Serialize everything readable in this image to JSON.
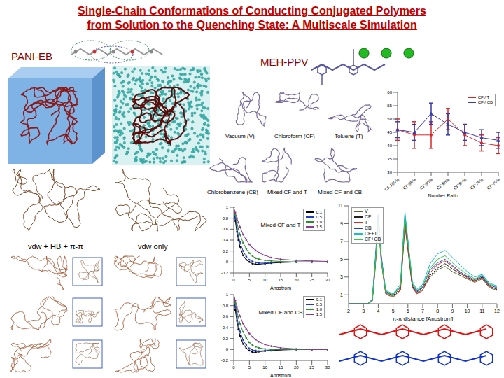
{
  "title": "Single-Chain Conformations of Conducting Conjugated Polymers from Solution to the Quenching State: A Multiscale Simulation",
  "labels": {
    "pani": "PANI-EB",
    "meh": "MEH-PPV",
    "hb": "vdw + HB + π-π",
    "vdw": "vdw only"
  },
  "solvents": [
    "Vacuum (V)",
    "Chloroform (CF)",
    "Toluene (T)",
    "Chlorobenzene (CB)",
    "Mixed CF and T",
    "Mixed CF and CB"
  ],
  "chart_data": [
    {
      "type": "line",
      "x_label": "Number Ratio",
      "categories": [
        "CF:100%",
        "CF:95%",
        "CF:90%",
        "CF:85%",
        "CF:80%",
        "CF:75%",
        "CF:70%"
      ],
      "series": [
        {
          "name": "CF / T",
          "color": "#d62728",
          "marker": "circle",
          "values": [
            46,
            44,
            44,
            50,
            44,
            41,
            40
          ],
          "errors": [
            4,
            5,
            5,
            4,
            4,
            3,
            3
          ]
        },
        {
          "name": "CF / CB",
          "color": "#3a3aa8",
          "marker": "triangle",
          "values": [
            46,
            45,
            52,
            48,
            45,
            43,
            42
          ],
          "errors": [
            3,
            3,
            4,
            4,
            3,
            3,
            3
          ]
        }
      ],
      "ylim": [
        30,
        60
      ],
      "yticks": [
        30,
        35,
        40,
        45,
        50,
        55,
        60
      ],
      "legend": "upper right"
    },
    {
      "type": "line",
      "title": "Mixed CF and T",
      "x_label": "Angstrom",
      "marker": "circle",
      "x": [
        0,
        0.5,
        1,
        1.5,
        2,
        3,
        4,
        5,
        6,
        7,
        8,
        10,
        12,
        15,
        20,
        25,
        30
      ],
      "series": [
        {
          "name": "0.1",
          "color": "#000000",
          "values": [
            1,
            0.75,
            0.55,
            0.4,
            0.28,
            0.12,
            0.04,
            0,
            -0.03,
            -0.04,
            -0.04,
            -0.03,
            -0.02,
            -0.01,
            0,
            0,
            0
          ]
        },
        {
          "name": "0.5",
          "color": "#1f3fbf",
          "values": [
            1,
            0.8,
            0.62,
            0.48,
            0.36,
            0.2,
            0.1,
            0.04,
            0.01,
            -0.01,
            -0.02,
            -0.02,
            -0.01,
            0,
            0,
            0,
            0
          ]
        },
        {
          "name": "1.0",
          "color": "#2e8b2e",
          "values": [
            1,
            0.85,
            0.72,
            0.6,
            0.5,
            0.35,
            0.24,
            0.16,
            0.11,
            0.07,
            0.05,
            0.03,
            0.02,
            0.01,
            0,
            0,
            0
          ]
        },
        {
          "name": "1.5",
          "color": "#8b3a8b",
          "values": [
            1,
            0.9,
            0.8,
            0.72,
            0.64,
            0.5,
            0.4,
            0.32,
            0.26,
            0.21,
            0.17,
            0.12,
            0.08,
            0.05,
            0.03,
            0.02,
            0.01
          ]
        }
      ],
      "xlim": [
        0,
        30
      ],
      "xticks": [
        0,
        5,
        10,
        15,
        20,
        25,
        30
      ],
      "ylim": [
        -0.2,
        1
      ],
      "yticks": [
        -0.2,
        0,
        0.2,
        0.4,
        0.6,
        0.8,
        1
      ],
      "legend": "upper right"
    },
    {
      "type": "line",
      "title": "Mixed CF and CB",
      "x_label": "Angstrom",
      "marker": "circle",
      "x": [
        0,
        0.5,
        1,
        1.5,
        2,
        3,
        4,
        5,
        6,
        7,
        8,
        10,
        12,
        15,
        20,
        25,
        30
      ],
      "series": [
        {
          "name": "0.1",
          "color": "#000000",
          "values": [
            1,
            0.72,
            0.52,
            0.37,
            0.25,
            0.1,
            0.02,
            -0.02,
            -0.05,
            -0.05,
            -0.04,
            -0.03,
            -0.02,
            -0.01,
            0,
            0,
            0
          ]
        },
        {
          "name": "0.5",
          "color": "#1f3fbf",
          "values": [
            1,
            0.78,
            0.6,
            0.45,
            0.33,
            0.17,
            0.08,
            0.02,
            -0.01,
            -0.02,
            -0.03,
            -0.02,
            -0.01,
            0,
            0,
            0,
            0
          ]
        },
        {
          "name": "1.0",
          "color": "#2e8b2e",
          "values": [
            1,
            0.84,
            0.7,
            0.58,
            0.47,
            0.32,
            0.21,
            0.13,
            0.08,
            0.05,
            0.03,
            0.01,
            0,
            0,
            0,
            0,
            0
          ]
        },
        {
          "name": "1.5",
          "color": "#8b3a8b",
          "values": [
            1,
            0.89,
            0.78,
            0.69,
            0.61,
            0.47,
            0.37,
            0.29,
            0.23,
            0.18,
            0.14,
            0.09,
            0.06,
            0.03,
            0.01,
            0,
            0
          ]
        }
      ],
      "xlim": [
        0,
        30
      ],
      "xticks": [
        0,
        5,
        10,
        15,
        20,
        25,
        30
      ],
      "ylim": [
        -0.2,
        1
      ],
      "yticks": [
        -0.2,
        0,
        0.2,
        0.4,
        0.6,
        0.8,
        1
      ],
      "legend": "upper right"
    },
    {
      "type": "line",
      "x_label": "π-π distance [Angstrom]",
      "x": [
        2,
        2.5,
        3,
        3.3,
        3.6,
        3.8,
        4,
        4.2,
        4.5,
        5,
        5.5,
        5.8,
        6,
        6.3,
        6.6,
        7,
        7.5,
        8,
        8.5,
        9,
        9.5,
        10,
        10.5,
        11,
        11.5,
        12
      ],
      "series": [
        {
          "name": "V",
          "color": "#556b2f",
          "values": [
            0,
            0,
            0,
            0,
            0.3,
            4,
            9.5,
            5,
            1.2,
            0.8,
            1.5,
            8.8,
            6,
            1.8,
            1.2,
            1.6,
            3,
            3.8,
            4.2,
            3.6,
            3.2,
            2.8,
            2.4,
            2.8,
            1.8,
            1.5
          ]
        },
        {
          "name": "CF",
          "color": "#222222",
          "values": [
            0,
            0,
            0,
            0,
            0.4,
            4.5,
            9.8,
            5.2,
            1.3,
            0.9,
            1.8,
            9.5,
            6.5,
            2,
            1.3,
            1.8,
            3.2,
            4,
            4.5,
            3.9,
            3.4,
            3,
            2.5,
            3,
            2,
            1.6
          ]
        },
        {
          "name": "T",
          "color": "#d62728",
          "values": [
            0,
            0,
            0,
            0,
            0.3,
            4.2,
            9.2,
            4.8,
            1.1,
            0.7,
            1.6,
            9,
            6.2,
            1.9,
            1.1,
            1.5,
            3.5,
            4.4,
            4.8,
            4.2,
            3.5,
            2.9,
            2.6,
            2.9,
            1.9,
            1.7
          ]
        },
        {
          "name": "CB",
          "color": "#1f3fbf",
          "values": [
            0,
            0,
            0,
            0,
            0.5,
            5,
            10,
            5.5,
            1.4,
            1,
            2,
            10,
            7,
            2.2,
            1.4,
            1.9,
            3.8,
            4.6,
            5,
            4.3,
            3.6,
            3.1,
            2.7,
            3.1,
            2.1,
            1.8
          ]
        },
        {
          "name": "CF+T",
          "color": "#17becf",
          "values": [
            0,
            0,
            0,
            0,
            0.4,
            4.6,
            9.6,
            5.1,
            1.5,
            1.1,
            2.2,
            10.3,
            7.2,
            2.5,
            1.6,
            2.2,
            4.5,
            5.6,
            6,
            5.2,
            4.4,
            3.6,
            3,
            3.3,
            2.3,
            2
          ]
        },
        {
          "name": "CF+CB",
          "color": "#2ecc40",
          "values": [
            0,
            0,
            0,
            0,
            0.4,
            4.4,
            9.4,
            5,
            1.3,
            1,
            2,
            9.7,
            6.8,
            2.3,
            1.5,
            2,
            4,
            5,
            5.4,
            4.6,
            3.9,
            3.3,
            2.8,
            3.2,
            2.2,
            1.9
          ]
        }
      ],
      "xlim": [
        2,
        12
      ],
      "xticks": [
        2,
        3,
        4,
        5,
        6,
        7,
        8,
        9,
        10,
        11,
        12
      ],
      "ylim": [
        0,
        11
      ],
      "yticks": [
        0,
        1,
        2,
        3,
        4,
        5,
        6,
        7,
        8,
        9,
        10,
        11
      ],
      "legend": "upper left"
    }
  ]
}
